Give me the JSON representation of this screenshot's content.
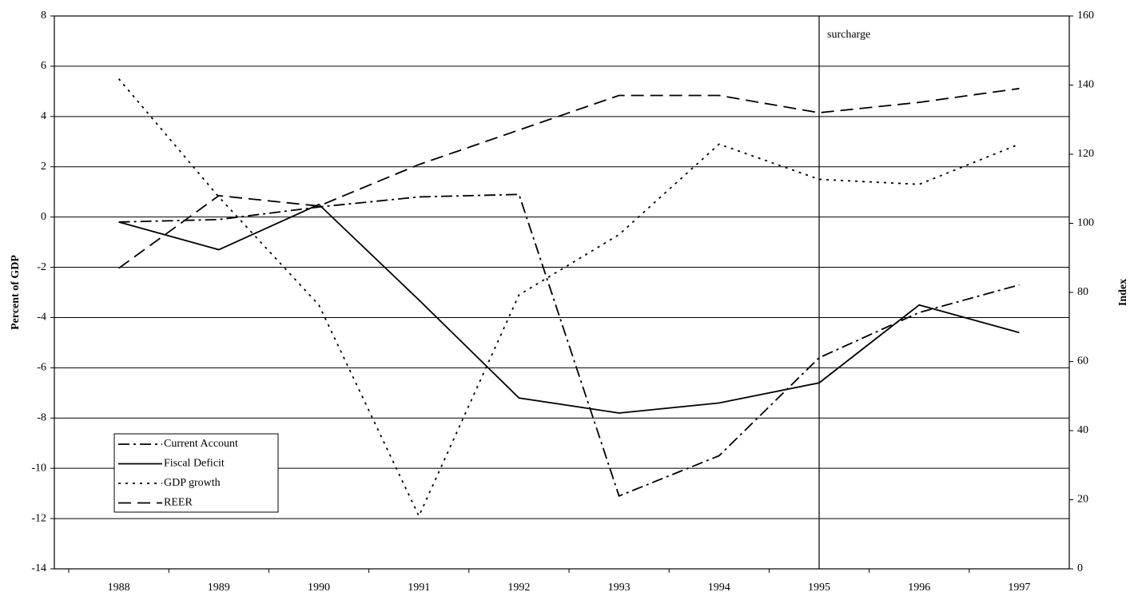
{
  "chart_data": {
    "type": "line",
    "y_label": "Percent of GDP",
    "y2_label": "Index",
    "categories": [
      "1988",
      "1989",
      "1990",
      "1991",
      "1992",
      "1993",
      "1994",
      "1995",
      "1996",
      "1997"
    ],
    "series": [
      {
        "name": "Current Account",
        "color": "#000000",
        "linestyle": "dashdot",
        "values": [
          -0.2,
          -0.1,
          0.4,
          0.8,
          0.9,
          -11.1,
          -9.5,
          -5.6,
          -3.8,
          -2.7
        ]
      },
      {
        "name": "Fiscal Deficit",
        "color": "#000000",
        "linestyle": "solid",
        "values": [
          -0.2,
          -1.3,
          0.5,
          -3.3,
          -7.2,
          -7.8,
          -7.4,
          -6.6,
          -3.5,
          -4.6
        ]
      },
      {
        "name": "GDP growth",
        "color": "#000000",
        "linestyle": "dotted",
        "values": [
          5.5,
          0.8,
          -3.5,
          -11.9,
          -3.1,
          -0.7,
          2.9,
          1.5,
          1.3,
          2.9
        ]
      },
      {
        "name": "REER",
        "color": "#000000",
        "linestyle": "dashed",
        "axis": "y2",
        "values": [
          87,
          108,
          105,
          117,
          127,
          137,
          137,
          132,
          135,
          139
        ]
      }
    ],
    "ylim": [
      -14,
      8
    ],
    "yticks": [
      -14,
      -12,
      -10,
      -8,
      -6,
      -4,
      -2,
      0,
      2,
      4,
      6,
      8
    ],
    "y2lim": [
      0,
      160
    ],
    "y2ticks": [
      0,
      20,
      40,
      60,
      80,
      100,
      120,
      140,
      160
    ],
    "grid": true,
    "legend": "lower left",
    "annotation": {
      "text": "surcharge",
      "x": "1995"
    }
  }
}
